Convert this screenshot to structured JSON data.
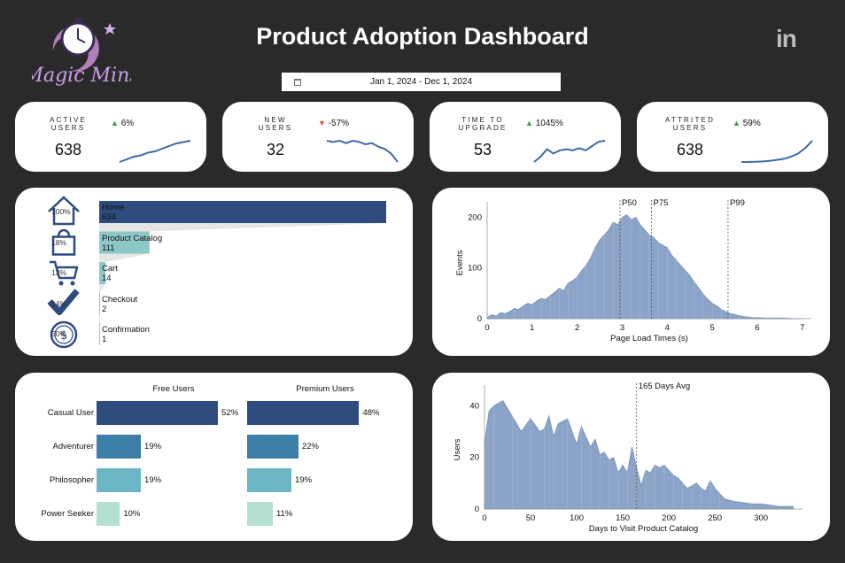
{
  "header": {
    "brand": "Magic Mins",
    "title": "Product Adoption Dashboard",
    "social_icon": "linkedin-icon",
    "date_range": "Jan 1, 2024 - Dec 1, 2024"
  },
  "kpis": [
    {
      "label_line1": "ACTIVE",
      "label_line2": "USERS",
      "value": "638",
      "delta": "6%",
      "direction": "up",
      "spark": [
        10,
        12,
        14,
        15,
        17,
        18,
        20,
        22,
        24,
        25,
        26
      ]
    },
    {
      "label_line1": "NEW",
      "label_line2": "USERS",
      "value": "32",
      "delta": "-57%",
      "direction": "down",
      "spark": [
        24,
        23,
        24,
        22,
        24,
        23,
        21,
        22,
        19,
        17,
        13,
        6
      ]
    },
    {
      "label_line1": "TIME TO",
      "label_line2": "UPGRADE",
      "value": "53",
      "delta": "1045%",
      "direction": "up",
      "spark": [
        5,
        10,
        17,
        13,
        16,
        17,
        16,
        18,
        16,
        20,
        24,
        25
      ]
    },
    {
      "label_line1": "ATTRITED",
      "label_line2": "USERS",
      "value": "638",
      "delta": "59%",
      "direction": "up",
      "spark": [
        4,
        4,
        4.2,
        4.5,
        5,
        6,
        7,
        9,
        12,
        17,
        24
      ]
    }
  ],
  "colors": {
    "navy": "#2e4c7d",
    "teal": "#8dc8c9",
    "steel": "#3b7ea6",
    "mint": "#b3e0cf",
    "hist": "#8aa3c6",
    "up": "#3a9a3a",
    "down": "#d9534f"
  },
  "funnel": {
    "steps": [
      {
        "name": "Home",
        "value": 634,
        "pct": "100%",
        "icon": "home-icon"
      },
      {
        "name": "Product Catalog",
        "value": 111,
        "pct": "18%",
        "icon": "shopping-bag-icon"
      },
      {
        "name": "Cart",
        "value": 14,
        "pct": "13%",
        "icon": "cart-icon"
      },
      {
        "name": "Checkout",
        "value": 2,
        "pct": "14%",
        "icon": "checkmark-icon"
      },
      {
        "name": "Confirmation",
        "value": 1,
        "pct": "50%",
        "icon": "dollar-icon"
      }
    ]
  },
  "segments": {
    "free_header": "Free Users",
    "premium_header": "Premium Users",
    "rows": [
      {
        "name": "Casual User",
        "free": 52,
        "free_label": "52%",
        "premium": 48,
        "premium_label": "48%"
      },
      {
        "name": "Adventurer",
        "free": 19,
        "free_label": "19%",
        "premium": 22,
        "premium_label": "22%"
      },
      {
        "name": "Philosopher",
        "free": 19,
        "free_label": "19%",
        "premium": 19,
        "premium_label": "19%"
      },
      {
        "name": "Power Seeker",
        "free": 10,
        "free_label": "10%",
        "premium": 11,
        "premium_label": "11%"
      }
    ]
  },
  "chart_data": [
    {
      "type": "area",
      "title": "",
      "xlabel": "Page Load Times (s)",
      "ylabel": "Events",
      "xlim": [
        0,
        7.2
      ],
      "ylim": [
        0,
        220
      ],
      "xticks": [
        0,
        1,
        2,
        3,
        4,
        5,
        6,
        7
      ],
      "yticks": [
        0,
        100,
        200
      ],
      "markers": [
        {
          "label": "P50",
          "x": 2.95
        },
        {
          "label": "P75",
          "x": 3.65
        },
        {
          "label": "P99",
          "x": 5.35
        }
      ],
      "x": [
        0,
        0.1,
        0.2,
        0.3,
        0.4,
        0.5,
        0.6,
        0.7,
        0.8,
        0.9,
        1.0,
        1.1,
        1.2,
        1.3,
        1.4,
        1.5,
        1.6,
        1.7,
        1.8,
        1.9,
        2.0,
        2.1,
        2.2,
        2.3,
        2.4,
        2.5,
        2.6,
        2.7,
        2.8,
        2.9,
        3.0,
        3.1,
        3.2,
        3.3,
        3.4,
        3.5,
        3.6,
        3.7,
        3.8,
        3.9,
        4.0,
        4.1,
        4.2,
        4.3,
        4.4,
        4.5,
        4.6,
        4.7,
        4.8,
        4.9,
        5.0,
        5.1,
        5.2,
        5.3,
        5.4,
        5.5,
        5.6,
        5.7,
        5.8,
        5.9,
        6.0,
        6.2,
        6.4,
        6.6,
        6.8,
        7.0
      ],
      "y": [
        2,
        8,
        5,
        12,
        10,
        14,
        20,
        18,
        25,
        30,
        28,
        35,
        40,
        38,
        45,
        52,
        60,
        55,
        70,
        75,
        82,
        95,
        105,
        120,
        140,
        155,
        165,
        175,
        190,
        185,
        200,
        205,
        195,
        200,
        185,
        175,
        165,
        160,
        150,
        145,
        140,
        125,
        115,
        105,
        95,
        85,
        72,
        60,
        48,
        38,
        30,
        25,
        18,
        14,
        10,
        8,
        6,
        4,
        3,
        2,
        2,
        1,
        1,
        1,
        0,
        0
      ]
    },
    {
      "type": "area",
      "title": "",
      "xlabel": "Days to Visit Product Catalog",
      "ylabel": "Users",
      "xlim": [
        0,
        345
      ],
      "ylim": [
        0,
        46
      ],
      "xticks": [
        0,
        50,
        100,
        150,
        200,
        250,
        300
      ],
      "yticks": [
        0,
        20,
        40
      ],
      "markers": [
        {
          "label": "165 Days Avg",
          "x": 165
        }
      ],
      "x": [
        0,
        5,
        10,
        20,
        30,
        40,
        50,
        60,
        65,
        70,
        75,
        80,
        90,
        100,
        105,
        110,
        115,
        120,
        125,
        130,
        135,
        140,
        145,
        150,
        155,
        160,
        165,
        170,
        175,
        180,
        185,
        190,
        195,
        200,
        205,
        210,
        215,
        220,
        225,
        230,
        235,
        240,
        245,
        250,
        255,
        260,
        270,
        280,
        290,
        300,
        310,
        320,
        330,
        335
      ],
      "y": [
        25,
        38,
        40,
        42,
        36,
        30,
        35,
        30,
        31,
        36,
        28,
        33,
        35,
        25,
        32,
        28,
        24,
        27,
        21,
        22,
        19,
        20,
        14,
        17,
        14,
        24,
        16,
        9,
        15,
        14,
        17,
        16,
        17,
        15,
        13,
        12,
        10,
        8,
        9,
        10,
        8,
        7,
        11,
        8,
        6,
        4,
        3,
        2.5,
        2,
        2,
        1.5,
        1,
        1,
        1
      ]
    }
  ]
}
